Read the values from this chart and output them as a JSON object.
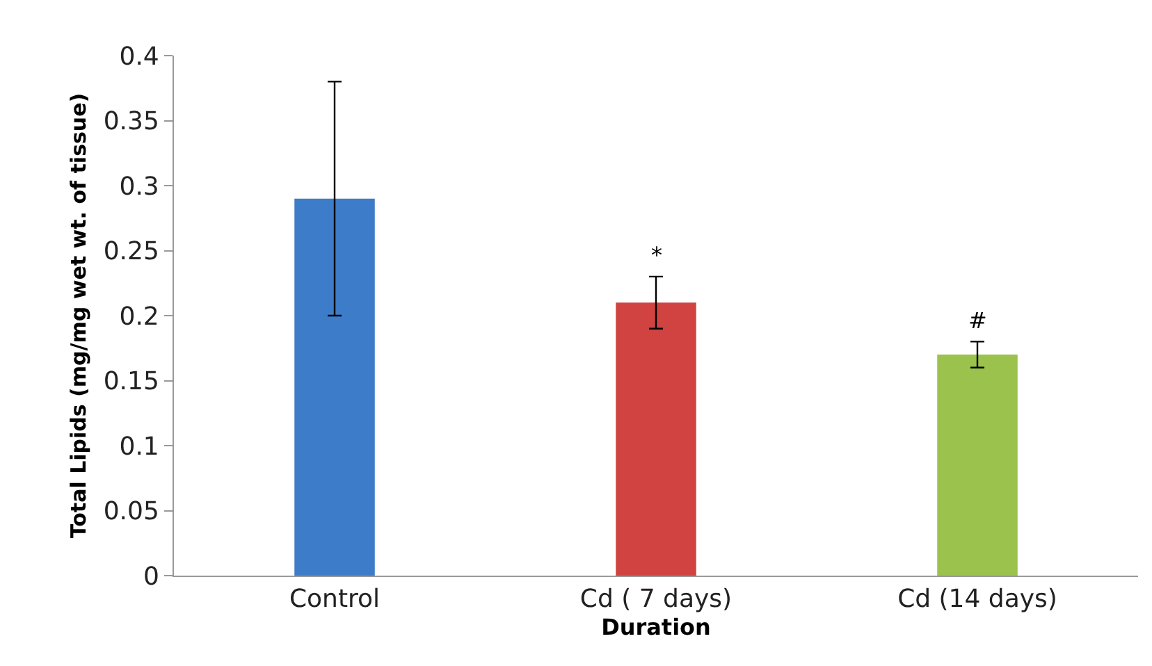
{
  "chart_data": {
    "type": "bar",
    "xlabel": "Duration",
    "ylabel": "Total Lipids (mg/mg wet wt. of tissue)",
    "categories": [
      "Control",
      "Cd ( 7 days)",
      "Cd (14 days)"
    ],
    "values": [
      0.29,
      0.21,
      0.17
    ],
    "colors": [
      "#3d7cc9",
      "#d04340",
      "#9bc24c"
    ],
    "errors": [
      0.09,
      0.02,
      0.01
    ],
    "ylim": [
      0,
      0.4
    ],
    "yticks": [
      0,
      0.05,
      0.1,
      0.15,
      0.2,
      0.25,
      0.3,
      0.35,
      0.4
    ],
    "grid": false,
    "annotations": [
      {
        "text": "*",
        "x": "Cd ( 7 days)",
        "y": 0.23
      },
      {
        "text": "#",
        "x": "Cd (14 days)",
        "y": 0.18
      }
    ]
  }
}
